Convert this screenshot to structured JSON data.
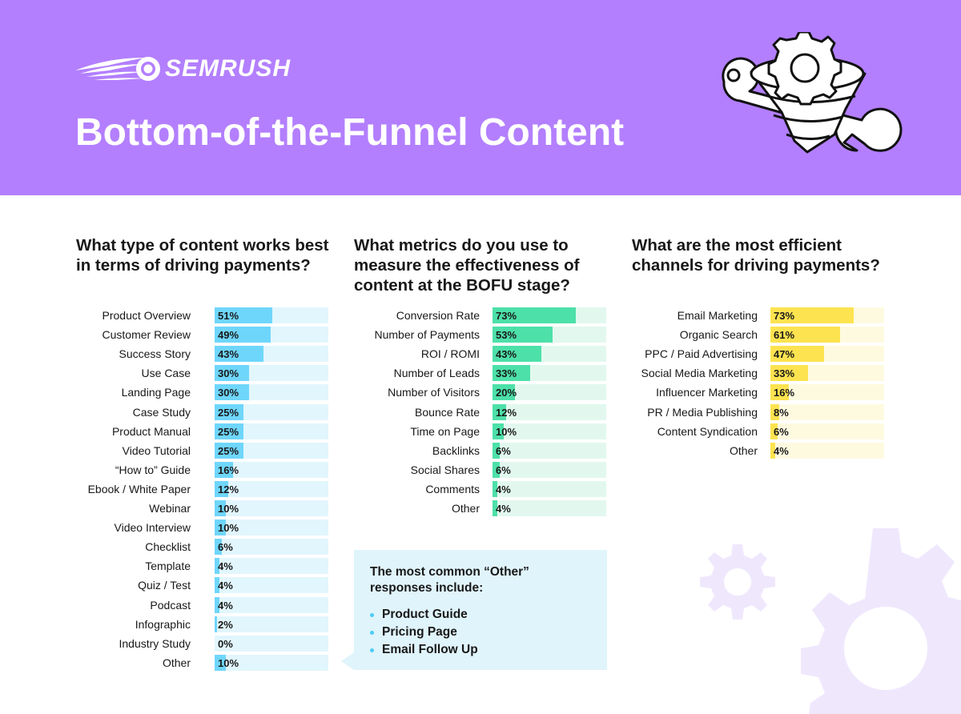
{
  "brand": {
    "name": "SEMRUSH"
  },
  "page_title": "Bottom-of-the-Funnel Content",
  "colors": {
    "header_bg": "#b37ffe",
    "blue_fill": "#6fd6fb",
    "blue_track": "#e2f6fd",
    "green_fill": "#4de0a9",
    "green_track": "#e2f8ef",
    "yellow_fill": "#fde350",
    "yellow_track": "#fefae0"
  },
  "icons": [
    "semrush-comet-icon",
    "funnel-gear-wrench-illustration",
    "background-gears-icon"
  ],
  "chart_data": [
    {
      "type": "bar",
      "orientation": "horizontal",
      "title": "What type of content works best in terms of driving payments?",
      "unit": "%",
      "xlim": [
        0,
        100
      ],
      "categories": [
        "Product Overview",
        "Customer Review",
        "Success Story",
        "Use Case",
        "Landing Page",
        "Case Study",
        "Product Manual",
        "Video Tutorial",
        "“How to” Guide",
        "Ebook / White Paper",
        "Webinar",
        "Video Interview",
        "Checklist",
        "Template",
        "Quiz / Test",
        "Podcast",
        "Infographic",
        "Industry Study",
        "Other"
      ],
      "values": [
        51,
        49,
        43,
        30,
        30,
        25,
        25,
        25,
        16,
        12,
        10,
        10,
        6,
        4,
        4,
        4,
        2,
        0,
        10
      ],
      "labels": [
        "51%",
        "49%",
        "43%",
        "30%",
        "30%",
        "25%",
        "25%",
        "25%",
        "16%",
        "12%",
        "10%",
        "10%",
        "6%",
        "4%",
        "4%",
        "4%",
        "2%",
        "0%",
        "10%"
      ]
    },
    {
      "type": "bar",
      "orientation": "horizontal",
      "title": "What metrics do you use to measure the effectiveness of content at the BOFU stage?",
      "unit": "%",
      "xlim": [
        0,
        100
      ],
      "categories": [
        "Conversion Rate",
        "Number of Payments",
        "ROI / ROMI",
        "Number of Leads",
        "Number of Visitors",
        "Bounce Rate",
        "Time on Page",
        "Backlinks",
        "Social Shares",
        "Comments",
        "Other"
      ],
      "values": [
        73,
        53,
        43,
        33,
        20,
        12,
        10,
        6,
        6,
        4,
        4
      ],
      "labels": [
        "73%",
        "53%",
        "43%",
        "33%",
        "20%",
        "12%",
        "10%",
        "6%",
        "6%",
        "4%",
        "4%"
      ]
    },
    {
      "type": "bar",
      "orientation": "horizontal",
      "title": "What are the most efficient channels for driving payments?",
      "unit": "%",
      "xlim": [
        0,
        100
      ],
      "categories": [
        "Email Marketing",
        "Organic Search",
        "PPC / Paid Advertising",
        "Social Media Marketing",
        "Influencer Marketing",
        "PR / Media Publishing",
        "Content Syndication",
        "Other"
      ],
      "values": [
        73,
        61,
        47,
        33,
        16,
        8,
        6,
        4
      ],
      "labels": [
        "73%",
        "61%",
        "47%",
        "33%",
        "16%",
        "8%",
        "6%",
        "4%"
      ]
    }
  ],
  "callout": {
    "title": "The most common “Other” responses include:",
    "items": [
      "Product Guide",
      "Pricing Page",
      "Email Follow Up"
    ]
  }
}
